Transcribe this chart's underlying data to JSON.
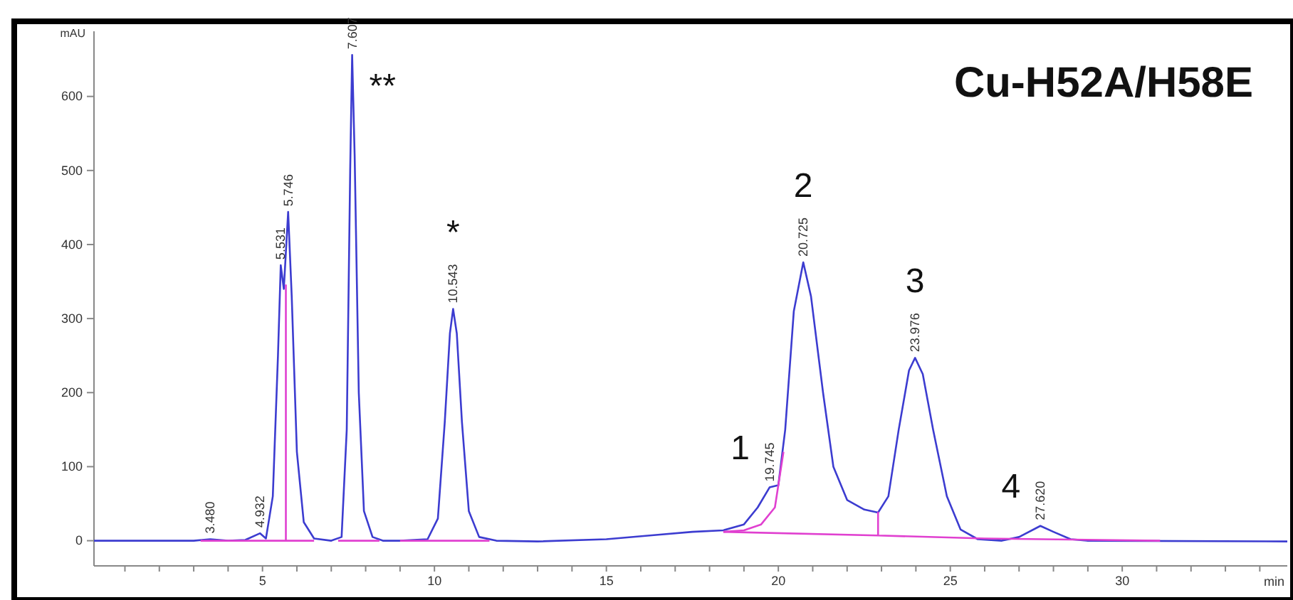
{
  "chart_data": {
    "type": "line",
    "title": "Cu-H52A/H58E",
    "xlabel": "min",
    "ylabel": "mAU",
    "xlim": [
      0.1,
      34.8
    ],
    "ylim": [
      -34,
      688
    ],
    "xticks": [
      {
        "value": 1,
        "label": null
      },
      {
        "value": 2,
        "label": null
      },
      {
        "value": 3,
        "label": null
      },
      {
        "value": 4,
        "label": null
      },
      5,
      {
        "value": 6,
        "label": null
      },
      {
        "value": 7,
        "label": null
      },
      {
        "value": 8,
        "label": null
      },
      {
        "value": 9,
        "label": null
      },
      10,
      {
        "value": 11,
        "label": null
      },
      {
        "value": 12,
        "label": null
      },
      {
        "value": 13,
        "label": null
      },
      {
        "value": 14,
        "label": null
      },
      15,
      {
        "value": 16,
        "label": null
      },
      {
        "value": 17,
        "label": null
      },
      {
        "value": 18,
        "label": null
      },
      {
        "value": 19,
        "label": null
      },
      20,
      {
        "value": 21,
        "label": null
      },
      {
        "value": 22,
        "label": null
      },
      {
        "value": 23,
        "label": null
      },
      {
        "value": 24,
        "label": null
      },
      25,
      {
        "value": 26,
        "label": null
      },
      {
        "value": 27,
        "label": null
      },
      {
        "value": 28,
        "label": null
      },
      {
        "value": 29,
        "label": null
      },
      30,
      {
        "value": 31,
        "label": null
      },
      {
        "value": 32,
        "label": null
      },
      {
        "value": 33,
        "label": null
      },
      {
        "value": 34,
        "label": null
      }
    ],
    "yticks": [
      0,
      100,
      200,
      300,
      400,
      500,
      600
    ],
    "grid": false,
    "line_style": "solid",
    "marker": "none",
    "series": [
      {
        "color": "#3c3cd0",
        "x": [
          0.1,
          3.0,
          3.48,
          4.0,
          4.5,
          4.93,
          5.1,
          5.3,
          5.45,
          5.531,
          5.62,
          5.746,
          5.85,
          6.0,
          6.2,
          6.5,
          7.0,
          7.3,
          7.45,
          7.55,
          7.607,
          7.68,
          7.8,
          7.95,
          8.2,
          8.5,
          9.0,
          9.8,
          10.1,
          10.3,
          10.45,
          10.543,
          10.65,
          10.8,
          11.0,
          11.3,
          11.8,
          13.0,
          15.0,
          16.5,
          17.5,
          18.4,
          19.0,
          19.4,
          19.745,
          20.0,
          20.2,
          20.45,
          20.725,
          20.95,
          21.3,
          21.6,
          22.0,
          22.5,
          22.9,
          23.2,
          23.5,
          23.8,
          23.976,
          24.2,
          24.5,
          24.9,
          25.3,
          25.8,
          26.5,
          27.0,
          27.62,
          28.0,
          28.5,
          29.0,
          34.8
        ],
        "values": [
          0,
          0,
          2,
          0,
          1,
          10,
          3,
          60,
          250,
          372,
          340,
          444,
          330,
          120,
          25,
          3,
          0,
          5,
          150,
          500,
          656,
          520,
          200,
          40,
          5,
          0,
          0,
          2,
          30,
          160,
          280,
          313,
          280,
          160,
          40,
          5,
          0,
          -1,
          2,
          8,
          12,
          14,
          22,
          45,
          72,
          75,
          150,
          310,
          376,
          330,
          200,
          100,
          55,
          42,
          38,
          60,
          150,
          230,
          247,
          225,
          150,
          60,
          15,
          2,
          0,
          5,
          20,
          12,
          2,
          0,
          -1
        ]
      },
      {
        "color": "#e040d0",
        "x": [
          3.2,
          5.68,
          5.68,
          5.68,
          6.5
        ],
        "values": [
          0,
          0,
          345,
          0,
          0
        ]
      },
      {
        "color": "#e040d0",
        "x": [
          7.2,
          8.4
        ],
        "values": [
          0,
          0
        ]
      },
      {
        "color": "#e040d0",
        "x": [
          9.0,
          11.6
        ],
        "values": [
          0,
          0
        ]
      },
      {
        "color": "#e040d0",
        "x": [
          18.4,
          19.0,
          19.5,
          19.9,
          20.15
        ],
        "values": [
          12,
          14,
          22,
          45,
          120
        ]
      },
      {
        "color": "#e040d0",
        "x": [
          18.4,
          22.9,
          22.9,
          22.9,
          26.0,
          31.1
        ],
        "values": [
          12,
          7,
          38,
          7,
          3,
          0
        ]
      }
    ],
    "annotations": [
      {
        "text": "**",
        "x": 7.607,
        "y": 656
      },
      {
        "text": "*",
        "x": 10.543,
        "y": 313
      },
      {
        "text": "1",
        "x": 19.745,
        "y": 72
      },
      {
        "text": "2",
        "x": 20.725,
        "y": 376
      },
      {
        "text": "3",
        "x": 23.976,
        "y": 247
      },
      {
        "text": "4",
        "x": 27.62,
        "y": 20
      },
      {
        "text": "3.480",
        "x": 3.48,
        "y": 2
      },
      {
        "text": "4.932",
        "x": 4.93,
        "y": 10
      },
      {
        "text": "5.531",
        "x": 5.531,
        "y": 372
      },
      {
        "text": "5.746",
        "x": 5.746,
        "y": 444
      },
      {
        "text": "7.607",
        "x": 7.607,
        "y": 656
      },
      {
        "text": "10.543",
        "x": 10.543,
        "y": 313
      },
      {
        "text": "19.745",
        "x": 19.745,
        "y": 72
      },
      {
        "text": "20.725",
        "x": 20.725,
        "y": 376
      },
      {
        "text": "23.976",
        "x": 23.976,
        "y": 247
      },
      {
        "text": "27.620",
        "x": 27.62,
        "y": 20
      }
    ]
  }
}
